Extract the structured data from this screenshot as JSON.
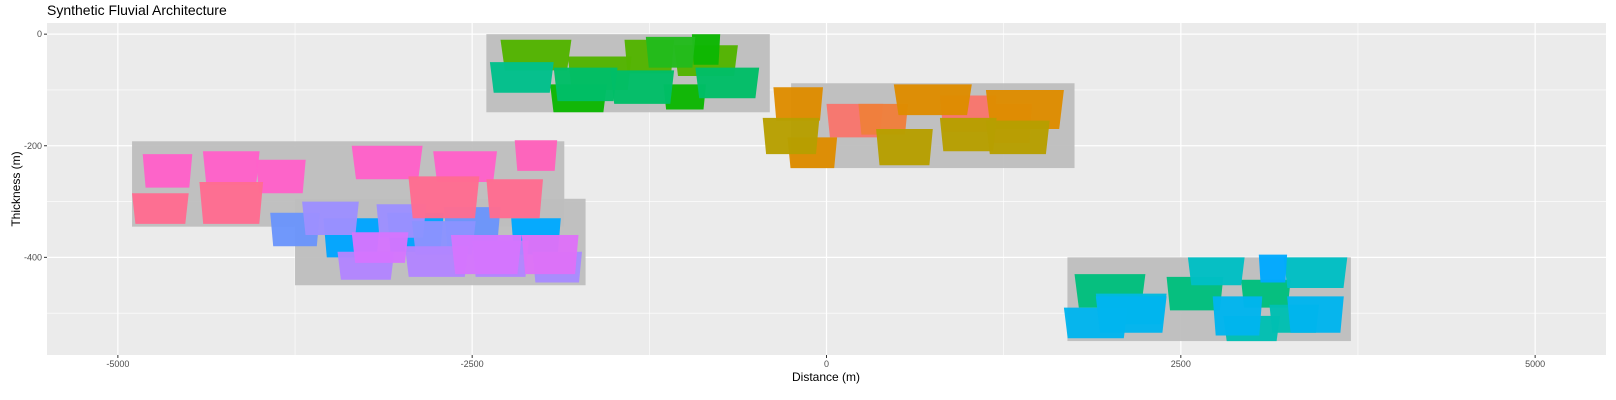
{
  "chart_data": {
    "type": "polygon",
    "title": "Synthetic Fluvial Architecture",
    "xlabel": "Distance (m)",
    "ylabel": "Thickness (m)",
    "xlim": [
      -5500,
      5500
    ],
    "ylim": [
      -575,
      20
    ],
    "x_ticks": [
      -5000,
      -2500,
      0,
      2500,
      5000
    ],
    "y_ticks": [
      0,
      -200,
      -400
    ],
    "x_tick_labels": [
      "-5000",
      "-2500",
      "0",
      "2500",
      "5000"
    ],
    "y_tick_labels": [
      "0",
      "-200",
      "-400"
    ],
    "grid": true,
    "background": "#EBEBEB",
    "belt_fill": "#bebebe",
    "belts": [
      {
        "xmin": -4900,
        "xmax": -1850,
        "ymin": -345,
        "ymax": -192
      },
      {
        "xmin": -3750,
        "xmax": -1700,
        "ymin": -450,
        "ymax": -295
      },
      {
        "xmin": -2400,
        "xmax": -400,
        "ymin": -140,
        "ymax": 0
      },
      {
        "xmin": -250,
        "xmax": 1750,
        "ymin": -240,
        "ymax": -88
      },
      {
        "xmin": 1700,
        "xmax": 3700,
        "ymin": -550,
        "ymax": -400
      }
    ],
    "bodies": [
      {
        "x": -3750,
        "w": 350,
        "top": -320,
        "bot": -380,
        "color": "#6B95FB"
      },
      {
        "x": -3350,
        "w": 400,
        "top": -330,
        "bot": -400,
        "color": "#00A5FF"
      },
      {
        "x": -2900,
        "w": 400,
        "top": -320,
        "bot": -390,
        "color": "#00A5FF"
      },
      {
        "x": -2500,
        "w": 400,
        "top": -310,
        "bot": -380,
        "color": "#6B95FB"
      },
      {
        "x": -2050,
        "w": 350,
        "top": -330,
        "bot": -395,
        "color": "#00A9FF"
      },
      {
        "x": -3500,
        "w": 400,
        "top": -300,
        "bot": -360,
        "color": "#9D8FFF"
      },
      {
        "x": -3000,
        "w": 350,
        "top": -305,
        "bot": -365,
        "color": "#9D8FFF"
      },
      {
        "x": -2700,
        "w": 450,
        "top": -335,
        "bot": -395,
        "color": "#8B93FF"
      },
      {
        "x": -3250,
        "w": 400,
        "top": -390,
        "bot": -440,
        "color": "#B385FF"
      },
      {
        "x": -2750,
        "w": 450,
        "top": -380,
        "bot": -435,
        "color": "#B385FF"
      },
      {
        "x": -2300,
        "w": 400,
        "top": -370,
        "bot": -435,
        "color": "#B385FF"
      },
      {
        "x": -1900,
        "w": 350,
        "top": -390,
        "bot": -445,
        "color": "#A88BFF"
      },
      {
        "x": -3150,
        "w": 400,
        "top": -355,
        "bot": -410,
        "color": "#D575FE"
      },
      {
        "x": -2400,
        "w": 500,
        "top": -360,
        "bot": -430,
        "color": "#D575FE"
      },
      {
        "x": -1950,
        "w": 400,
        "top": -360,
        "bot": -430,
        "color": "#DE72F8"
      },
      {
        "x": -4650,
        "w": 350,
        "top": -215,
        "bot": -275,
        "color": "#FF61C9"
      },
      {
        "x": -4200,
        "w": 400,
        "top": -210,
        "bot": -270,
        "color": "#FF61C9"
      },
      {
        "x": -3850,
        "w": 350,
        "top": -225,
        "bot": -285,
        "color": "#FF61C9"
      },
      {
        "x": -3100,
        "w": 500,
        "top": -200,
        "bot": -260,
        "color": "#FF61C9"
      },
      {
        "x": -2550,
        "w": 450,
        "top": -210,
        "bot": -265,
        "color": "#FF61C9"
      },
      {
        "x": -2050,
        "w": 300,
        "top": -190,
        "bot": -245,
        "color": "#FF62BC"
      },
      {
        "x": -4700,
        "w": 400,
        "top": -285,
        "bot": -340,
        "color": "#FF6C91"
      },
      {
        "x": -4200,
        "w": 450,
        "top": -265,
        "bot": -340,
        "color": "#FF6C91"
      },
      {
        "x": -2700,
        "w": 500,
        "top": -255,
        "bot": -330,
        "color": "#FF6C91"
      },
      {
        "x": -2200,
        "w": 400,
        "top": -260,
        "bot": -330,
        "color": "#FF6C91"
      },
      {
        "x": -2050,
        "w": 500,
        "top": -10,
        "bot": -65,
        "color": "#53B400"
      },
      {
        "x": -1600,
        "w": 450,
        "top": -40,
        "bot": -100,
        "color": "#53B400"
      },
      {
        "x": -1250,
        "w": 350,
        "top": -10,
        "bot": -70,
        "color": "#53B400"
      },
      {
        "x": -850,
        "w": 450,
        "top": -20,
        "bot": -75,
        "color": "#53B400"
      },
      {
        "x": -1750,
        "w": 400,
        "top": -90,
        "bot": -140,
        "color": "#0CB702"
      },
      {
        "x": -1000,
        "w": 300,
        "top": -90,
        "bot": -135,
        "color": "#0CB702"
      },
      {
        "x": -850,
        "w": 200,
        "top": 0,
        "bot": -55,
        "color": "#0CB702"
      },
      {
        "x": -1100,
        "w": 350,
        "top": -5,
        "bot": -60,
        "color": "#22BB1C"
      },
      {
        "x": -2150,
        "w": 450,
        "top": -50,
        "bot": -105,
        "color": "#00C08B"
      },
      {
        "x": -1700,
        "w": 450,
        "top": -60,
        "bot": -120,
        "color": "#00BE67"
      },
      {
        "x": -1300,
        "w": 450,
        "top": -65,
        "bot": -125,
        "color": "#00BE67"
      },
      {
        "x": -700,
        "w": 450,
        "top": -60,
        "bot": -115,
        "color": "#00BE67"
      },
      {
        "x": 200,
        "w": 400,
        "top": -125,
        "bot": -185,
        "color": "#F8766D"
      },
      {
        "x": 1000,
        "w": 400,
        "top": -110,
        "bot": -175,
        "color": "#F8766D"
      },
      {
        "x": 1300,
        "w": 300,
        "top": -125,
        "bot": -195,
        "color": "#F8766D"
      },
      {
        "x": 400,
        "w": 350,
        "top": -125,
        "bot": -180,
        "color": "#F07F3C"
      },
      {
        "x": -200,
        "w": 350,
        "top": -95,
        "bot": -155,
        "color": "#DE8C00"
      },
      {
        "x": 750,
        "w": 550,
        "top": -90,
        "bot": -145,
        "color": "#DE8C00"
      },
      {
        "x": 1400,
        "w": 550,
        "top": -100,
        "bot": -170,
        "color": "#DE8C00"
      },
      {
        "x": -100,
        "w": 350,
        "top": -185,
        "bot": -240,
        "color": "#DE8C00"
      },
      {
        "x": -250,
        "w": 400,
        "top": -150,
        "bot": -215,
        "color": "#B79F00"
      },
      {
        "x": 550,
        "w": 400,
        "top": -170,
        "bot": -235,
        "color": "#B79F00"
      },
      {
        "x": 1000,
        "w": 400,
        "top": -150,
        "bot": -210,
        "color": "#B79F00"
      },
      {
        "x": 1350,
        "w": 450,
        "top": -155,
        "bot": -215,
        "color": "#B79F00"
      },
      {
        "x": 2000,
        "w": 500,
        "top": -430,
        "bot": -490,
        "color": "#00BF7D"
      },
      {
        "x": 2600,
        "w": 400,
        "top": -435,
        "bot": -495,
        "color": "#00BF7D"
      },
      {
        "x": 3100,
        "w": 350,
        "top": -440,
        "bot": -490,
        "color": "#00BF7D"
      },
      {
        "x": 3000,
        "w": 400,
        "top": -505,
        "bot": -550,
        "color": "#00BFB2"
      },
      {
        "x": 3300,
        "w": 350,
        "top": -485,
        "bot": -535,
        "color": "#00BFB2"
      },
      {
        "x": 2150,
        "w": 500,
        "top": -465,
        "bot": -520,
        "color": "#00BAE0"
      },
      {
        "x": 2750,
        "w": 400,
        "top": -400,
        "bot": -450,
        "color": "#00BFC4"
      },
      {
        "x": 3450,
        "w": 450,
        "top": -400,
        "bot": -455,
        "color": "#00BFC4"
      },
      {
        "x": 3150,
        "w": 200,
        "top": -395,
        "bot": -445,
        "color": "#00A9FF"
      },
      {
        "x": 1900,
        "w": 450,
        "top": -490,
        "bot": -545,
        "color": "#00B5EE"
      },
      {
        "x": 2150,
        "w": 500,
        "top": -470,
        "bot": -535,
        "color": "#00B5EE"
      },
      {
        "x": 2900,
        "w": 350,
        "top": -470,
        "bot": -540,
        "color": "#00B5EE"
      },
      {
        "x": 3450,
        "w": 400,
        "top": -470,
        "bot": -535,
        "color": "#00B5EE"
      }
    ]
  }
}
